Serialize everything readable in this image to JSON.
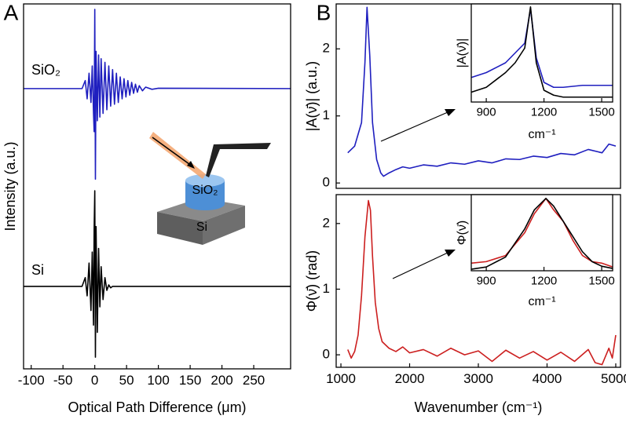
{
  "chart_data": [
    {
      "type": "line",
      "panel_label": "A",
      "xlabel": "Optical Path Difference (μm)",
      "ylabel": "Intensity (a.u.)",
      "xlim": [
        -112,
        308
      ],
      "xticks": [
        -100,
        -50,
        0,
        50,
        100,
        150,
        200,
        250
      ],
      "ylim": [
        0,
        10
      ],
      "x": [
        -112,
        -20,
        -15,
        -12,
        -9,
        -6,
        -4,
        -2,
        -1,
        0,
        1,
        2,
        4,
        6,
        8,
        10,
        13,
        16,
        19,
        22,
        25,
        28,
        31,
        34,
        37,
        40,
        43,
        46,
        49,
        52,
        55,
        58,
        61,
        64,
        67,
        70,
        75,
        80,
        90,
        100,
        308
      ],
      "series": [
        {
          "name": "SiO₂",
          "color": "#1f1fbf",
          "values": [
            7.68,
            7.68,
            7.9,
            7.4,
            8.1,
            7.3,
            8.3,
            7.0,
            6.5,
            9.85,
            5.2,
            8.7,
            6.8,
            8.6,
            6.9,
            8.5,
            7.0,
            8.4,
            7.1,
            8.3,
            7.2,
            8.2,
            7.25,
            8.1,
            7.3,
            8.0,
            7.4,
            7.95,
            7.45,
            7.9,
            7.5,
            7.85,
            7.55,
            7.8,
            7.58,
            7.76,
            7.62,
            7.72,
            7.66,
            7.69,
            7.68
          ]
        },
        {
          "name": "Si",
          "color": "#000000",
          "values": [
            2.26,
            2.26,
            2.5,
            2.0,
            2.9,
            1.6,
            3.2,
            1.2,
            3.8,
            4.88,
            0.32,
            3.9,
            1.0,
            3.3,
            1.7,
            2.8,
            1.9,
            2.5,
            2.15,
            2.3,
            2.22,
            2.26,
            2.26,
            2.26,
            2.26,
            2.26,
            2.26,
            2.26,
            2.26,
            2.26,
            2.26,
            2.26,
            2.26,
            2.26,
            2.26,
            2.26,
            2.26,
            2.26,
            2.26,
            2.26,
            2.26
          ]
        }
      ],
      "illustration_labels": [
        "SiO₂",
        "Si"
      ]
    },
    {
      "type": "line",
      "panel_label": "B",
      "ylabel": "|A(ν̄)|  (a.u.)",
      "xlim": [
        931,
        5069
      ],
      "ylim": [
        -0.08,
        2.67
      ],
      "yticks": [
        0,
        1,
        2
      ],
      "x": [
        1100,
        1200,
        1300,
        1350,
        1380,
        1420,
        1460,
        1520,
        1580,
        1620,
        1700,
        1800,
        1900,
        2000,
        2200,
        2400,
        2600,
        2800,
        3000,
        3200,
        3400,
        3600,
        3800,
        4000,
        4200,
        4400,
        4600,
        4800,
        4900,
        5000
      ],
      "series": [
        {
          "color": "#1f1fbf",
          "values": [
            0.45,
            0.55,
            0.9,
            1.8,
            2.62,
            1.9,
            0.9,
            0.35,
            0.15,
            0.1,
            0.15,
            0.2,
            0.24,
            0.22,
            0.27,
            0.25,
            0.3,
            0.28,
            0.33,
            0.3,
            0.36,
            0.35,
            0.4,
            0.38,
            0.44,
            0.42,
            0.5,
            0.45,
            0.58,
            0.55
          ]
        }
      ]
    },
    {
      "type": "line",
      "xlabel": "cm⁻¹",
      "ylabel": "|A(ν̄)|",
      "xlim": [
        822,
        1557
      ],
      "xticks": [
        900,
        1200,
        1500
      ],
      "ylim": [
        0,
        1
      ],
      "x": [
        822,
        900,
        1000,
        1050,
        1100,
        1130,
        1160,
        1200,
        1250,
        1300,
        1400,
        1557
      ],
      "series": [
        {
          "color": "#1f1fbf",
          "values": [
            0.25,
            0.3,
            0.4,
            0.5,
            0.6,
            0.95,
            0.45,
            0.2,
            0.15,
            0.15,
            0.17,
            0.17
          ]
        },
        {
          "color": "#000000",
          "values": [
            0.1,
            0.15,
            0.3,
            0.4,
            0.55,
            0.97,
            0.4,
            0.12,
            0.07,
            0.05,
            0.05,
            0.05
          ]
        }
      ]
    },
    {
      "type": "line",
      "xlabel": "Wavenumber (cm⁻¹)",
      "ylabel": "Φ(ν̄) (rad)",
      "xlim": [
        931,
        5069
      ],
      "xticks": [
        1000,
        2000,
        3000,
        4000,
        5000
      ],
      "ylim": [
        -0.19,
        2.44
      ],
      "yticks": [
        0,
        1,
        2
      ],
      "x": [
        1100,
        1150,
        1200,
        1250,
        1300,
        1350,
        1400,
        1430,
        1460,
        1500,
        1550,
        1600,
        1700,
        1800,
        1900,
        2000,
        2200,
        2400,
        2600,
        2800,
        3000,
        3200,
        3400,
        3600,
        3800,
        4000,
        4200,
        4400,
        4600,
        4700,
        4800,
        4900,
        4950,
        5000
      ],
      "series": [
        {
          "color": "#cc1f1f",
          "values": [
            0.08,
            -0.05,
            0.05,
            0.3,
            0.9,
            1.8,
            2.35,
            2.2,
            1.5,
            0.8,
            0.4,
            0.2,
            0.1,
            0.05,
            0.12,
            0.03,
            0.08,
            -0.02,
            0.1,
            0.0,
            0.06,
            -0.1,
            0.07,
            -0.05,
            0.05,
            -0.08,
            0.04,
            -0.1,
            0.08,
            -0.12,
            -0.15,
            0.1,
            -0.05,
            0.3
          ]
        }
      ]
    },
    {
      "type": "line",
      "xlabel": "cm⁻¹",
      "ylabel": "Φ(ν̄)",
      "xlim": [
        822,
        1557
      ],
      "xticks": [
        900,
        1200,
        1500
      ],
      "ylim": [
        0,
        1
      ],
      "x": [
        822,
        900,
        1000,
        1100,
        1150,
        1210,
        1250,
        1300,
        1350,
        1400,
        1450,
        1500,
        1557
      ],
      "series": [
        {
          "color": "#cc1f1f",
          "values": [
            0.1,
            0.12,
            0.2,
            0.5,
            0.75,
            0.95,
            0.8,
            0.65,
            0.4,
            0.2,
            0.12,
            0.1,
            0.05
          ]
        },
        {
          "color": "#000000",
          "values": [
            0.02,
            0.05,
            0.18,
            0.55,
            0.8,
            0.95,
            0.85,
            0.65,
            0.45,
            0.25,
            0.12,
            0.06,
            0.03
          ]
        }
      ]
    }
  ]
}
